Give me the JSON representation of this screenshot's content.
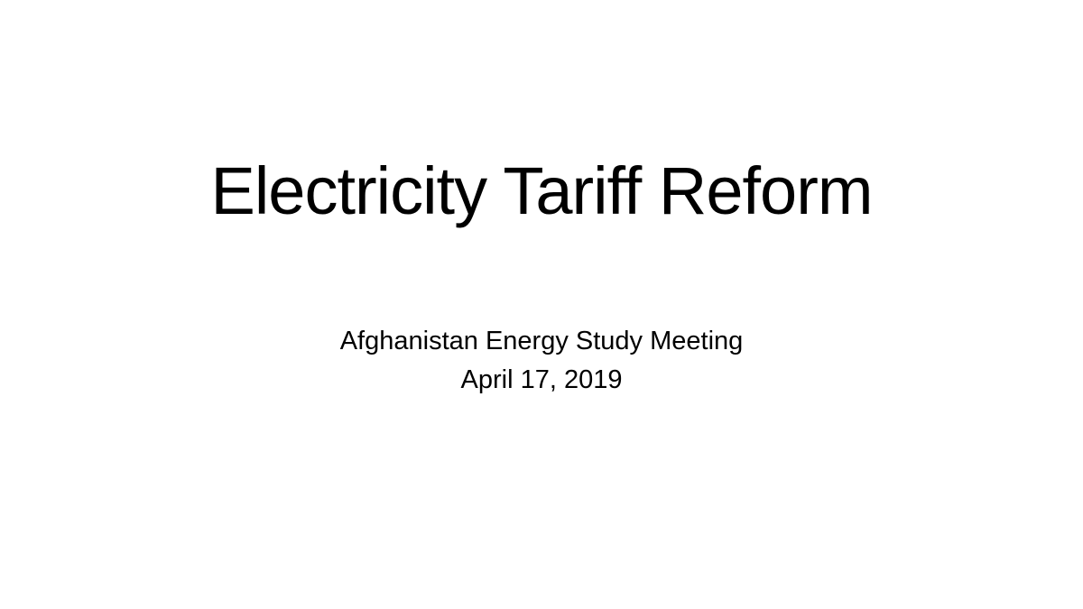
{
  "slide": {
    "background_color": "#ffffff",
    "text_color": "#000000",
    "title": "Electricity Tariff Reform",
    "subtitle": {
      "line1": "Afghanistan Energy Study Meeting",
      "line2": "April 17, 2019"
    }
  }
}
